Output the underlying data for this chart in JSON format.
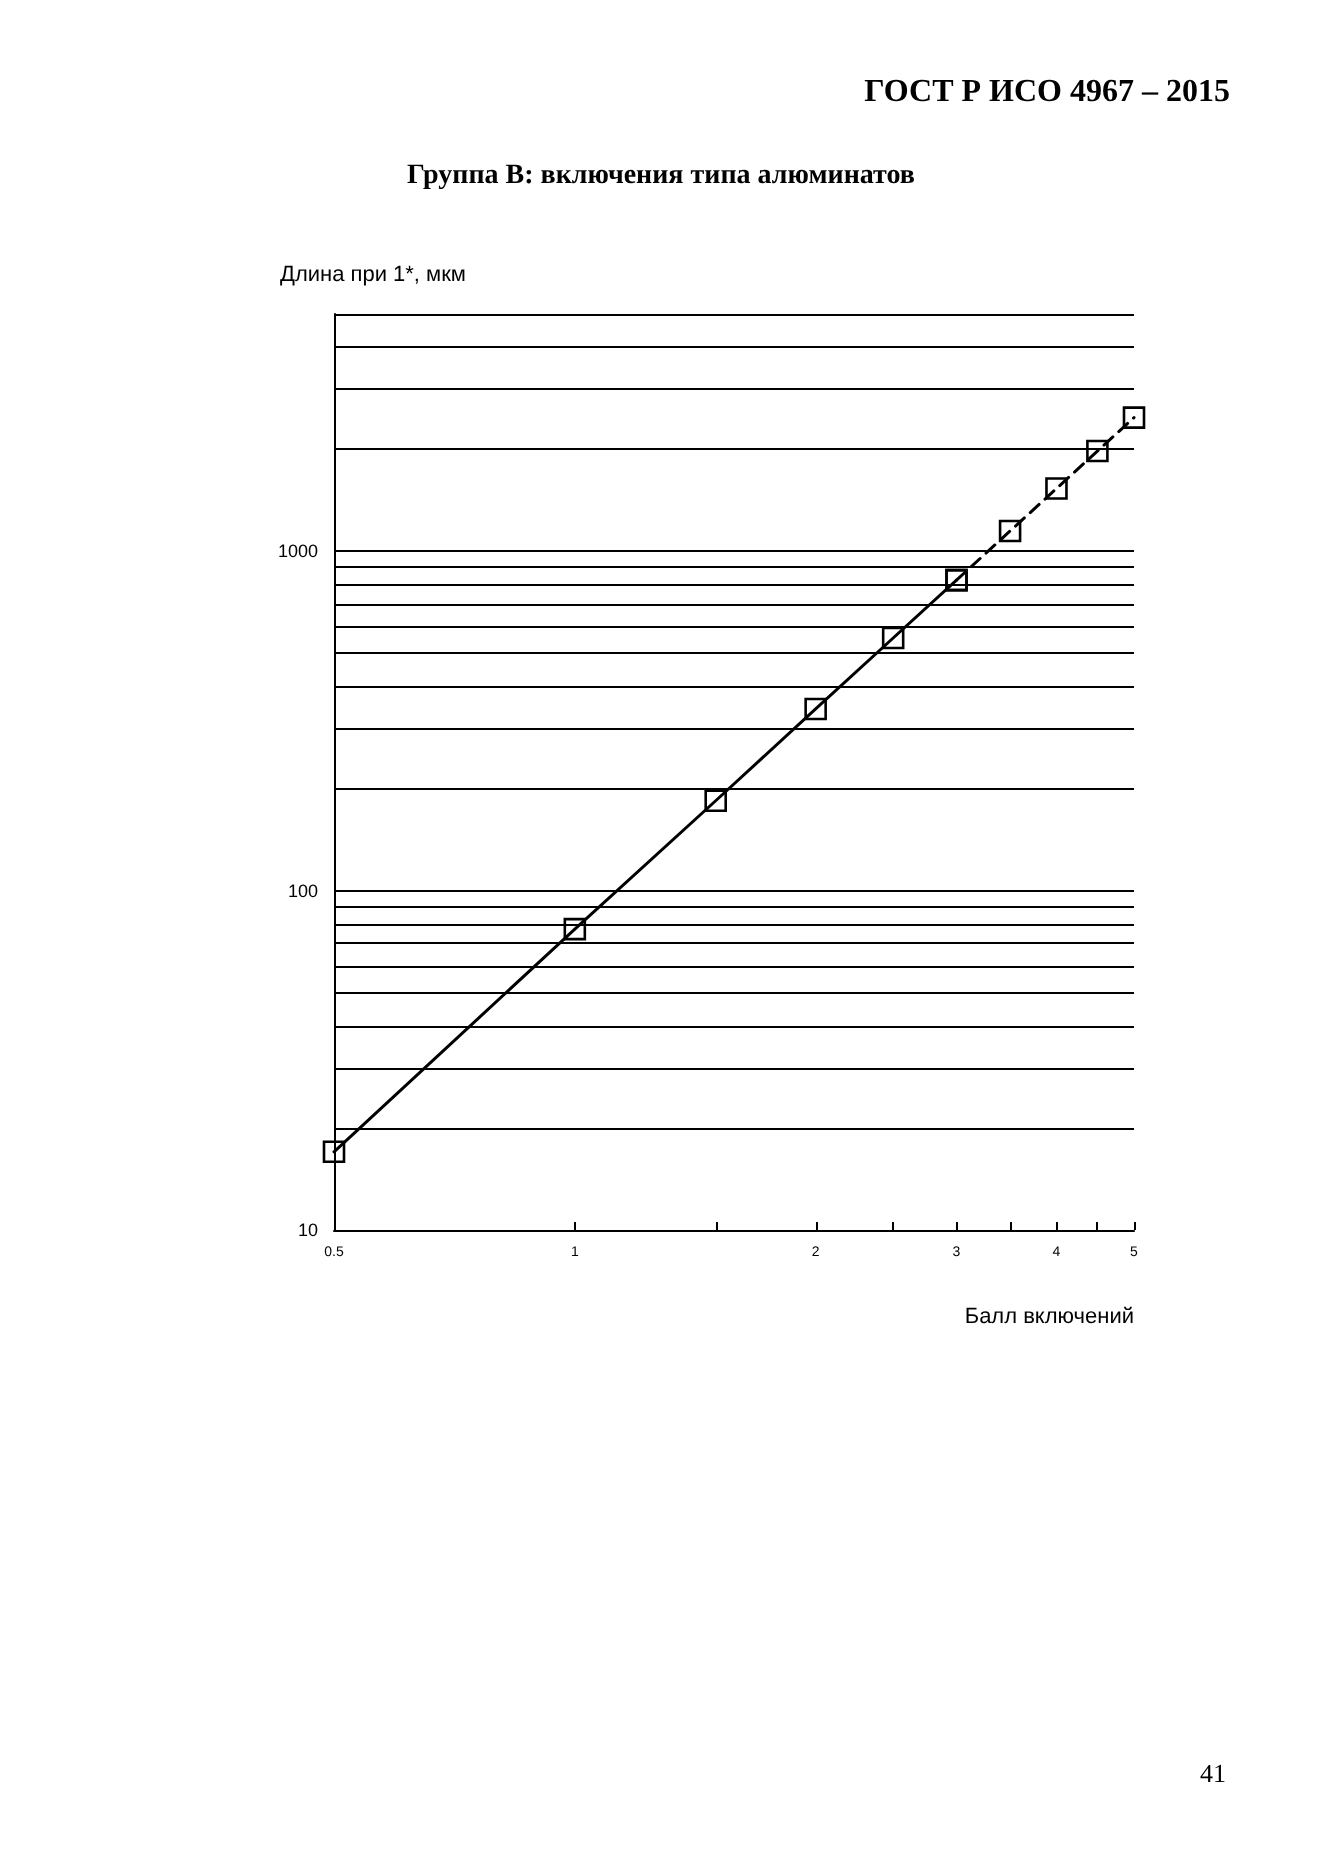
{
  "chart_data": {
    "type": "line",
    "title": "Группа В: включения типа алюминатов",
    "xlabel": "Балл включений",
    "ylabel": "Длина при 1*, мкм",
    "annotations": [
      "ГОСТ Р ИСО 4967 – 2015",
      "41"
    ],
    "log": "xy",
    "grid": "y",
    "marker": "square",
    "xlim": [
      0.5,
      5
    ],
    "ylim": [
      10,
      5000
    ],
    "xticks": [
      0.5,
      1,
      {
        "value": 1.5,
        "label": null
      },
      2,
      {
        "value": 2.5,
        "label": null
      },
      3,
      {
        "value": 3.5,
        "label": null
      },
      4,
      {
        "value": 4.5,
        "label": null
      },
      5
    ],
    "yticks": [
      10,
      {
        "value": 20,
        "label": null
      },
      {
        "value": 30,
        "label": null
      },
      {
        "value": 40,
        "label": null
      },
      {
        "value": 50,
        "label": null
      },
      {
        "value": 60,
        "label": null
      },
      {
        "value": 70,
        "label": null
      },
      {
        "value": 80,
        "label": null
      },
      {
        "value": 90,
        "label": null
      },
      100,
      {
        "value": 200,
        "label": null
      },
      {
        "value": 300,
        "label": null
      },
      {
        "value": 400,
        "label": null
      },
      {
        "value": 500,
        "label": null
      },
      {
        "value": 600,
        "label": null
      },
      {
        "value": 700,
        "label": null
      },
      {
        "value": 800,
        "label": null
      },
      {
        "value": 900,
        "label": null
      },
      1000,
      {
        "value": 2000,
        "label": null
      },
      {
        "value": 3000,
        "label": null
      },
      {
        "value": 4000,
        "label": null
      },
      {
        "value": 5000,
        "label": null
      }
    ],
    "series": [
      {
        "color": "#000000",
        "line_style": "solid",
        "x": [
          0.5,
          1,
          1.5,
          2,
          2.5,
          3
        ],
        "values": [
          17,
          77,
          184,
          343,
          555,
          822
        ]
      },
      {
        "color": "#000000",
        "line_style": "dashed",
        "x": [
          3,
          3.5,
          4,
          4.5,
          5
        ],
        "values": [
          822,
          1147,
          1530,
          1973,
          2476
        ]
      }
    ]
  }
}
